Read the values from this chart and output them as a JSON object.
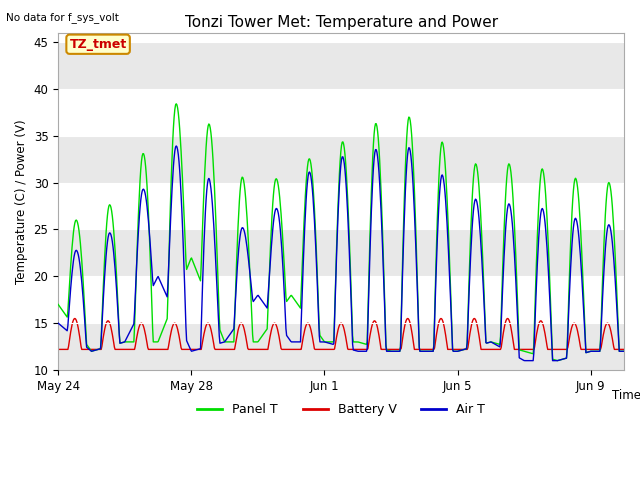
{
  "title": "Tonzi Tower Met: Temperature and Power",
  "xlabel": "Time",
  "ylabel": "Temperature (C) / Power (V)",
  "ylim": [
    10,
    46
  ],
  "yticks": [
    10,
    15,
    20,
    25,
    30,
    35,
    40,
    45
  ],
  "no_data_text": "No data for f_sys_volt",
  "tag_label": "TZ_tmet",
  "x_tick_labels": [
    "May 24",
    "May 28",
    "Jun 1",
    "Jun 5",
    "Jun 9"
  ],
  "x_tick_positions": [
    0,
    4,
    8,
    12,
    16
  ],
  "panel_color": "#00dd00",
  "battery_color": "#dd0000",
  "air_color": "#0000cc",
  "panel_peaks": [
    26,
    26,
    29,
    36.5,
    40,
    33,
    28.5,
    32,
    33,
    35.5,
    37,
    37,
    32,
    32,
    32,
    31,
    30,
    29
  ],
  "air_peaks": [
    22.5,
    23,
    26,
    32,
    35.5,
    26,
    24.5,
    29.5,
    32.5,
    33,
    34,
    33.5,
    28.5,
    28,
    27.5,
    27,
    25.5,
    25.5
  ],
  "night_min_panel": [
    17,
    12,
    13,
    13,
    22,
    13,
    13,
    18,
    13,
    13,
    12,
    12,
    12,
    13,
    12,
    11,
    12,
    14
  ],
  "night_min_air": [
    15,
    12,
    13,
    20,
    12,
    13,
    18,
    13,
    13,
    12,
    12,
    12,
    12,
    13,
    11,
    11,
    12,
    13
  ],
  "batt_peaks": [
    15.5,
    15.5,
    15,
    15,
    15,
    15,
    15,
    15,
    15,
    15,
    15.5,
    15.5,
    15.5,
    15.5,
    15.5,
    15,
    15,
    14.5
  ]
}
